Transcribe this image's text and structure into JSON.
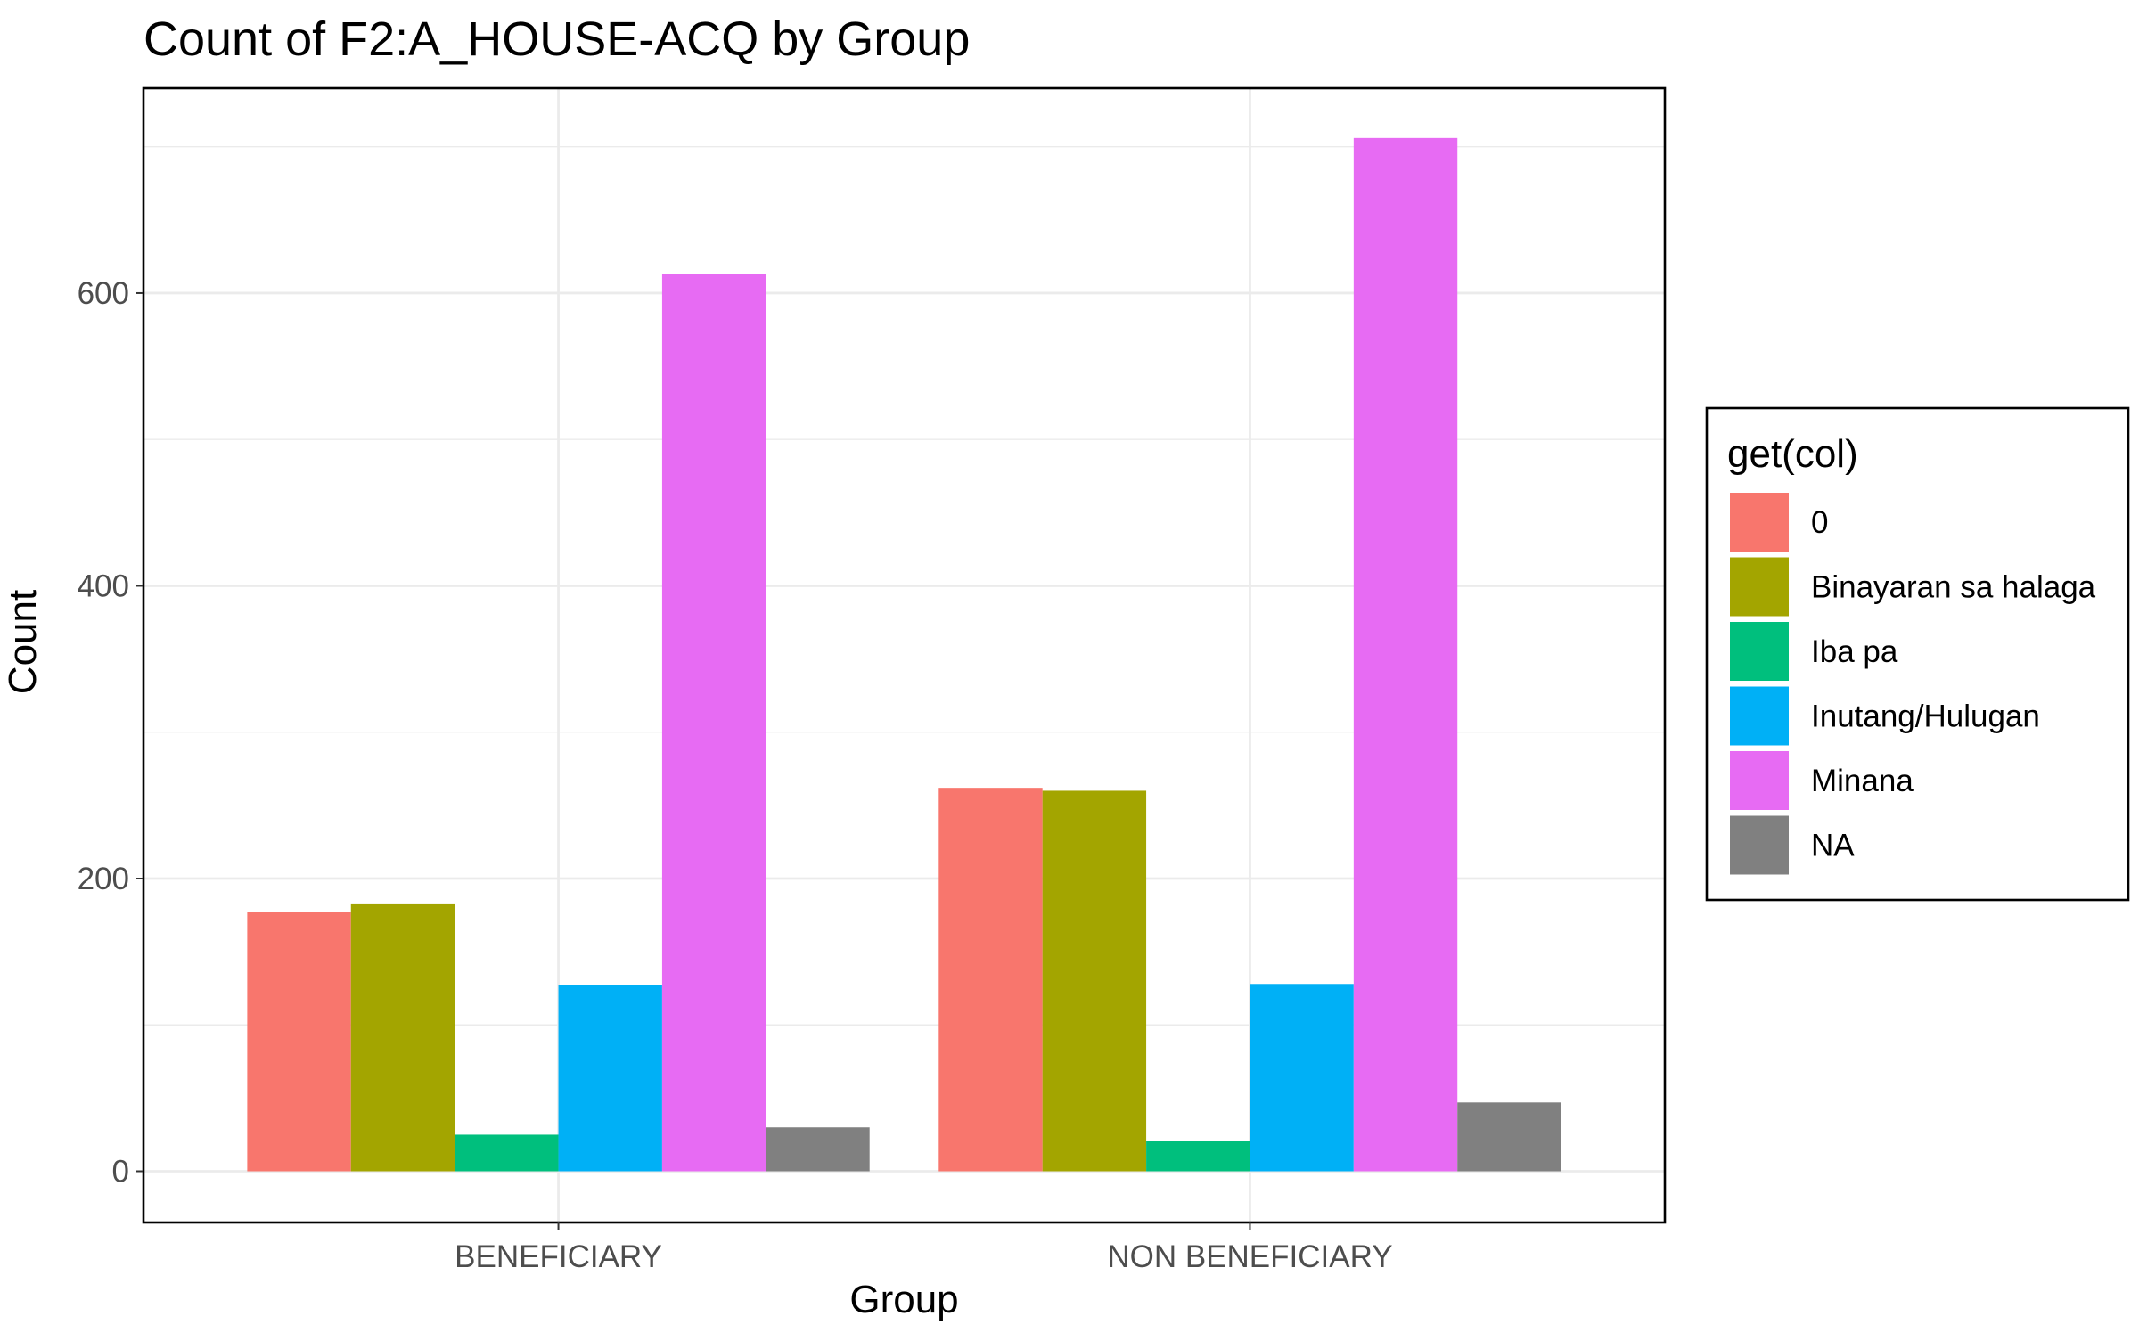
{
  "chart_data": {
    "type": "bar",
    "title": "Count of F2:A_HOUSE-ACQ by Group",
    "xlabel": "Group",
    "ylabel": "Count",
    "categories": [
      "BENEFICIARY",
      "NON BENEFICIARY"
    ],
    "ylim": [
      -35,
      740
    ],
    "yticks": [
      0,
      200,
      400,
      600
    ],
    "ytick_labels": [
      "0",
      "200",
      "400",
      "600"
    ],
    "grid": true,
    "legend": {
      "title": "get(col)",
      "position": "right"
    },
    "series": [
      {
        "name": "0",
        "color": "#F8766D",
        "values": [
          177,
          262
        ]
      },
      {
        "name": "Binayaran sa halaga",
        "color": "#A3A500",
        "values": [
          183,
          260
        ]
      },
      {
        "name": "Iba pa",
        "color": "#00BF7D",
        "values": [
          25,
          21
        ]
      },
      {
        "name": "Inutang/Hulugan",
        "color": "#00B0F6",
        "values": [
          127,
          128
        ]
      },
      {
        "name": "Minana",
        "color": "#E76BF3",
        "values": [
          613,
          706
        ]
      },
      {
        "name": "NA",
        "color": "#808080",
        "values": [
          30,
          47
        ]
      }
    ]
  }
}
